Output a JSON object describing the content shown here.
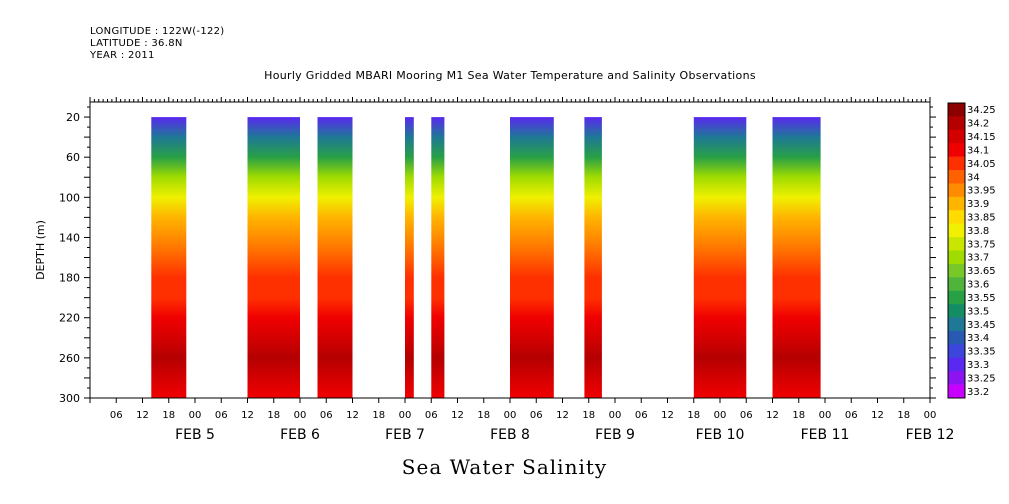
{
  "header": {
    "longitude": "LONGITUDE : 122W(-122)",
    "latitude": "LATITUDE : 36.8N",
    "year": "YEAR : 2011"
  },
  "chart_data": {
    "type": "heatmap",
    "title": "Hourly Gridded MBARI Mooring M1 Sea Water Temperature and Salinity Observations",
    "xlabel": "",
    "ylabel": "DEPTH (m)",
    "footer_label": "Sea Water Salinity",
    "ylim": [
      300,
      5
    ],
    "y_ticks": [
      20,
      60,
      100,
      140,
      180,
      220,
      260,
      300
    ],
    "x_start": "2011-02-04 00:00",
    "x_end": "2011-02-12 00:00",
    "x_hour_ticks": [
      "06",
      "12",
      "18",
      "00",
      "06",
      "12",
      "18",
      "00",
      "06",
      "12",
      "18",
      "00",
      "06",
      "12",
      "18",
      "00",
      "06",
      "12",
      "18",
      "00",
      "06",
      "12",
      "18",
      "00",
      "06",
      "12",
      "18",
      "00",
      "06",
      "12",
      "18",
      "00"
    ],
    "date_labels": [
      {
        "label": "FEB  5",
        "datetime": "2011-02-05 00:00"
      },
      {
        "label": "FEB  6",
        "datetime": "2011-02-06 00:00"
      },
      {
        "label": "FEB  7",
        "datetime": "2011-02-07 00:00"
      },
      {
        "label": "FEB  8",
        "datetime": "2011-02-08 00:00"
      },
      {
        "label": "FEB  9",
        "datetime": "2011-02-09 00:00"
      },
      {
        "label": "FEB 10",
        "datetime": "2011-02-10 00:00"
      },
      {
        "label": "FEB 11",
        "datetime": "2011-02-11 00:00"
      },
      {
        "label": "FEB 12",
        "datetime": "2011-02-12 00:00"
      }
    ],
    "colorbar": {
      "levels": [
        "34.25",
        "34.2",
        "34.15",
        "34.1",
        "34.05",
        "34",
        "33.95",
        "33.9",
        "33.85",
        "33.8",
        "33.75",
        "33.7",
        "33.65",
        "33.6",
        "33.55",
        "33.5",
        "33.45",
        "33.4",
        "33.35",
        "33.3",
        "33.25",
        "33.2"
      ],
      "colors": [
        "#8c0000",
        "#b40000",
        "#d40000",
        "#f00000",
        "#ff3000",
        "#ff6000",
        "#ff8c00",
        "#ffb400",
        "#ffdc00",
        "#f0f000",
        "#c8e600",
        "#a0dc00",
        "#78c828",
        "#50b43c",
        "#28a046",
        "#148c64",
        "#1e7896",
        "#285ab4",
        "#3c46dc",
        "#5a28f0",
        "#8c14f0",
        "#c800ff"
      ]
    },
    "data_windows": [
      {
        "start": "2011-02-04 14:00",
        "end": "2011-02-04 22:00"
      },
      {
        "start": "2011-02-05 12:00",
        "end": "2011-02-06 00:00"
      },
      {
        "start": "2011-02-06 04:00",
        "end": "2011-02-06 12:00"
      },
      {
        "start": "2011-02-07 00:00",
        "end": "2011-02-07 02:00"
      },
      {
        "start": "2011-02-07 06:00",
        "end": "2011-02-07 09:00"
      },
      {
        "start": "2011-02-08 00:00",
        "end": "2011-02-08 10:00"
      },
      {
        "start": "2011-02-08 17:00",
        "end": "2011-02-08 21:00"
      },
      {
        "start": "2011-02-09 18:00",
        "end": "2011-02-10 06:00"
      },
      {
        "start": "2011-02-10 12:00",
        "end": "2011-02-10 23:00"
      }
    ],
    "profile": {
      "depth_m": [
        20,
        40,
        60,
        80,
        100,
        120,
        140,
        160,
        180,
        200,
        220,
        240,
        260,
        280,
        300
      ],
      "salinity": [
        33.3,
        33.45,
        33.55,
        33.7,
        33.82,
        33.9,
        33.97,
        34.02,
        34.05,
        34.07,
        34.12,
        34.17,
        34.22,
        34.17,
        34.14
      ]
    }
  }
}
